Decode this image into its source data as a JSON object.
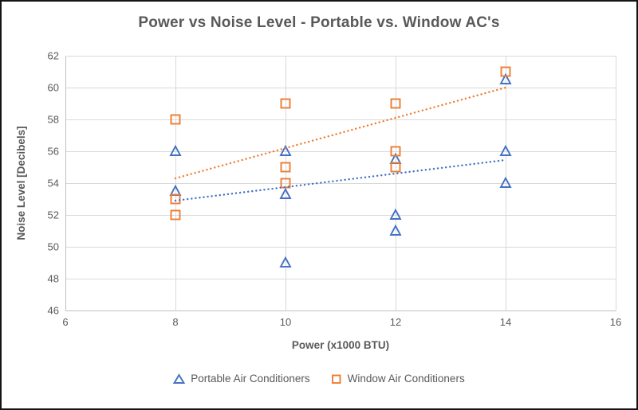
{
  "frame": {
    "background": "#FFFFFF",
    "border_color": "#141414"
  },
  "chart_data": {
    "type": "scatter",
    "title": "Power vs Noise Level - Portable vs. Window AC's",
    "xlabel": "Power (x1000 BTU)",
    "ylabel": "Noise Level [Decibels]",
    "xlim": [
      6,
      16
    ],
    "ylim": [
      46,
      62
    ],
    "x_ticks": [
      6,
      8,
      10,
      12,
      14,
      16
    ],
    "y_ticks": [
      46,
      48,
      50,
      52,
      54,
      56,
      58,
      60,
      62
    ],
    "grid": true,
    "legend_position": "bottom",
    "text_color": "#595959",
    "grid_color": "#D9D9D9",
    "axis_color": "#BFBFBF",
    "series": [
      {
        "name": "Portable Air Conditioners",
        "marker": "triangle",
        "color": "#4472C4",
        "points": [
          [
            8,
            56
          ],
          [
            8,
            53.5
          ],
          [
            10,
            56
          ],
          [
            10,
            53.3
          ],
          [
            10,
            49
          ],
          [
            12,
            55.5
          ],
          [
            12,
            52
          ],
          [
            12,
            51
          ],
          [
            14,
            60.5
          ],
          [
            14,
            56
          ],
          [
            14,
            54
          ]
        ],
        "trendline": {
          "style": "dotted",
          "start": [
            8,
            52.9
          ],
          "end": [
            14,
            55.45
          ]
        }
      },
      {
        "name": "Window Air Conditioners",
        "marker": "square",
        "color": "#ED7D31",
        "points": [
          [
            8,
            58
          ],
          [
            8,
            53
          ],
          [
            8,
            52
          ],
          [
            10,
            59
          ],
          [
            10,
            55
          ],
          [
            10,
            54
          ],
          [
            12,
            59
          ],
          [
            12,
            56
          ],
          [
            12,
            55
          ],
          [
            14,
            61
          ]
        ],
        "trendline": {
          "style": "dotted",
          "start": [
            8,
            54.3
          ],
          "end": [
            14,
            60.0
          ]
        }
      }
    ]
  }
}
